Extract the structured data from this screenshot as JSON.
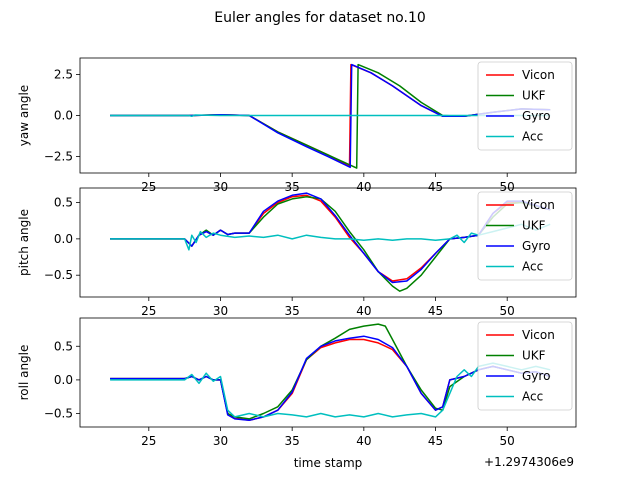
{
  "figure": {
    "title": "Euler angles for dataset no.10",
    "x_offset_label": "+1.2974306e9"
  },
  "colors": {
    "Vicon": "#ff0000",
    "UKF": "#008000",
    "Gyro": "#0000ff",
    "Acc": "#00bfbf"
  },
  "chart_data": [
    {
      "type": "line",
      "ylabel": "yaw angle",
      "xlabel": "",
      "xlim": [
        20.2,
        54.8
      ],
      "ylim": [
        -3.5,
        3.5
      ],
      "xticks": [
        25,
        30,
        35,
        40,
        45,
        50
      ],
      "yticks": [
        2.5,
        0.0,
        -2.5
      ],
      "ytick_labels": [
        "2.5",
        "0.0",
        "−2.5"
      ],
      "legend": {
        "placement": "top-right",
        "entries": [
          "Vicon",
          "UKF",
          "Gyro",
          "Acc"
        ]
      },
      "series": [
        {
          "name": "Vicon",
          "x": [
            22.3,
            28.0,
            30.0,
            32.0,
            34.0,
            36.0,
            37.5,
            39.0,
            39.1,
            40.5,
            42.0,
            44.0,
            45.5,
            47.0,
            49.0,
            51.0,
            53.0
          ],
          "y": [
            0.0,
            0.0,
            0.05,
            0.0,
            -1.0,
            -1.8,
            -2.4,
            -3.1,
            3.1,
            2.6,
            1.8,
            0.6,
            -0.05,
            -0.05,
            0.2,
            0.4,
            0.35
          ]
        },
        {
          "name": "UKF",
          "x": [
            22.3,
            28.0,
            30.0,
            32.0,
            34.0,
            36.0,
            37.5,
            39.5,
            39.6,
            41.0,
            42.5,
            44.0,
            45.5,
            47.0,
            49.0,
            51.0,
            53.0
          ],
          "y": [
            0.0,
            0.0,
            0.05,
            0.0,
            -1.0,
            -1.8,
            -2.4,
            -3.2,
            3.1,
            2.6,
            1.8,
            0.8,
            0.0,
            -0.05,
            0.2,
            0.4,
            0.35
          ]
        },
        {
          "name": "Gyro",
          "x": [
            22.3,
            28.0,
            30.0,
            32.0,
            34.0,
            36.0,
            37.5,
            39.05,
            39.15,
            40.5,
            42.0,
            44.0,
            45.5,
            47.0,
            49.0,
            51.0,
            53.0
          ],
          "y": [
            0.0,
            0.0,
            0.05,
            0.0,
            -1.05,
            -1.9,
            -2.5,
            -3.15,
            3.1,
            2.6,
            1.8,
            0.6,
            -0.05,
            -0.05,
            0.2,
            0.4,
            0.35
          ]
        },
        {
          "name": "Acc",
          "x": [
            22.3,
            27.8,
            28.0,
            28.2,
            30.0,
            32.0,
            35.0,
            38.0,
            41.0,
            44.0,
            47.0,
            50.0,
            53.0
          ],
          "y": [
            0.0,
            0.0,
            -0.05,
            0.03,
            0.0,
            0.0,
            0.0,
            0.0,
            0.0,
            0.0,
            0.0,
            0.0,
            0.0
          ]
        }
      ]
    },
    {
      "type": "line",
      "ylabel": "pitch angle",
      "xlabel": "",
      "xlim": [
        20.2,
        54.8
      ],
      "ylim": [
        -0.8,
        0.7
      ],
      "xticks": [
        25,
        30,
        35,
        40,
        45,
        50
      ],
      "yticks": [
        0.5,
        0.0,
        -0.5
      ],
      "ytick_labels": [
        "0.5",
        "0.0",
        "−0.5"
      ],
      "legend": {
        "placement": "top-right",
        "entries": [
          "Vicon",
          "UKF",
          "Gyro",
          "Acc"
        ]
      },
      "series": [
        {
          "name": "Vicon",
          "x": [
            22.3,
            27.5,
            28.0,
            28.5,
            29.0,
            29.5,
            30.0,
            30.5,
            31.0,
            32.0,
            33.0,
            34.0,
            35.0,
            36.0,
            37.0,
            38.0,
            39.0,
            40.0,
            41.0,
            42.0,
            43.0,
            44.0,
            45.0,
            46.0,
            47.0,
            48.0,
            49.0,
            50.0,
            51.0,
            52.0,
            53.0
          ],
          "y": [
            0.0,
            0.0,
            -0.1,
            0.05,
            0.1,
            0.05,
            0.12,
            0.06,
            0.08,
            0.08,
            0.35,
            0.5,
            0.58,
            0.6,
            0.52,
            0.3,
            0.02,
            -0.2,
            -0.45,
            -0.58,
            -0.55,
            -0.4,
            -0.2,
            0.0,
            0.02,
            0.05,
            0.35,
            0.5,
            0.5,
            0.45,
            0.4
          ]
        },
        {
          "name": "UKF",
          "x": [
            22.3,
            27.5,
            28.0,
            28.5,
            29.0,
            29.5,
            30.0,
            30.5,
            31.0,
            32.0,
            33.0,
            34.0,
            35.0,
            36.0,
            37.0,
            38.0,
            39.0,
            40.0,
            41.0,
            42.0,
            42.5,
            43.0,
            44.0,
            45.0,
            46.0,
            47.0,
            48.0,
            49.0,
            50.0,
            51.0,
            52.0,
            53.0
          ],
          "y": [
            0.0,
            0.0,
            -0.1,
            0.05,
            0.12,
            0.05,
            0.12,
            0.06,
            0.08,
            0.08,
            0.3,
            0.48,
            0.55,
            0.58,
            0.55,
            0.38,
            0.1,
            -0.15,
            -0.45,
            -0.65,
            -0.72,
            -0.68,
            -0.5,
            -0.25,
            0.0,
            0.02,
            0.05,
            0.3,
            0.48,
            0.5,
            0.45,
            0.4
          ]
        },
        {
          "name": "Gyro",
          "x": [
            22.3,
            27.5,
            28.0,
            28.5,
            29.0,
            29.5,
            30.0,
            30.5,
            31.0,
            32.0,
            33.0,
            34.0,
            35.0,
            36.0,
            37.0,
            38.0,
            39.0,
            40.0,
            41.0,
            42.0,
            43.0,
            44.0,
            45.0,
            46.0,
            47.0,
            48.0,
            49.0,
            50.0,
            51.0,
            52.0,
            53.0
          ],
          "y": [
            0.0,
            0.0,
            -0.1,
            0.05,
            0.1,
            0.05,
            0.12,
            0.06,
            0.08,
            0.08,
            0.38,
            0.52,
            0.6,
            0.63,
            0.55,
            0.32,
            0.05,
            -0.2,
            -0.45,
            -0.6,
            -0.58,
            -0.42,
            -0.2,
            0.0,
            0.02,
            0.05,
            0.35,
            0.52,
            0.52,
            0.46,
            0.4
          ]
        },
        {
          "name": "Acc",
          "x": [
            22.3,
            27.5,
            27.8,
            28.0,
            28.3,
            28.6,
            29.0,
            29.5,
            30.0,
            31.0,
            32.0,
            33.0,
            34.0,
            35.0,
            36.0,
            37.0,
            38.0,
            39.0,
            40.0,
            41.0,
            42.0,
            43.0,
            44.0,
            45.0,
            46.0,
            46.5,
            47.0,
            47.5,
            48.0,
            49.0,
            50.0,
            51.0,
            52.0,
            53.0
          ],
          "y": [
            0.0,
            0.0,
            -0.15,
            0.05,
            -0.05,
            0.1,
            0.02,
            0.08,
            0.05,
            0.02,
            0.04,
            0.02,
            0.05,
            0.0,
            0.05,
            0.02,
            0.0,
            0.0,
            -0.02,
            0.0,
            -0.02,
            0.0,
            0.0,
            -0.02,
            0.0,
            0.05,
            -0.05,
            0.08,
            0.05,
            0.1,
            0.15,
            0.2,
            0.12,
            0.2
          ]
        }
      ]
    },
    {
      "type": "line",
      "ylabel": "roll angle",
      "xlabel": "time stamp",
      "xlim": [
        20.2,
        54.8
      ],
      "ylim": [
        -0.7,
        0.92
      ],
      "xticks": [
        25,
        30,
        35,
        40,
        45,
        50
      ],
      "yticks": [
        0.5,
        0.0,
        -0.5
      ],
      "ytick_labels": [
        "0.5",
        "0.0",
        "−0.5"
      ],
      "legend": {
        "placement": "top-right",
        "entries": [
          "Vicon",
          "UKF",
          "Gyro",
          "Acc"
        ]
      },
      "series": [
        {
          "name": "Vicon",
          "x": [
            22.3,
            27.5,
            28.0,
            28.5,
            29.0,
            29.5,
            30.0,
            30.5,
            31.0,
            32.0,
            33.0,
            34.0,
            35.0,
            36.0,
            37.0,
            38.0,
            39.0,
            40.0,
            41.0,
            42.0,
            43.0,
            44.0,
            45.0,
            45.5,
            46.0,
            47.0,
            48.0,
            49.0,
            50.0,
            51.0,
            52.0,
            53.0
          ],
          "y": [
            0.02,
            0.02,
            0.05,
            0.0,
            0.05,
            0.0,
            0.0,
            -0.5,
            -0.57,
            -0.6,
            -0.55,
            -0.45,
            -0.2,
            0.3,
            0.48,
            0.55,
            0.6,
            0.6,
            0.55,
            0.45,
            0.2,
            -0.2,
            -0.45,
            -0.4,
            0.0,
            0.05,
            0.15,
            0.2,
            0.15,
            0.1,
            0.12,
            0.05
          ]
        },
        {
          "name": "UKF",
          "x": [
            22.3,
            27.5,
            28.0,
            28.5,
            29.0,
            29.5,
            30.0,
            30.5,
            31.0,
            32.0,
            33.0,
            34.0,
            35.0,
            36.0,
            37.0,
            38.0,
            39.0,
            40.0,
            41.0,
            41.5,
            42.0,
            43.0,
            44.0,
            45.0,
            45.5,
            46.0,
            47.0,
            48.0,
            49.0,
            50.0,
            51.0,
            52.0,
            53.0
          ],
          "y": [
            0.02,
            0.02,
            0.05,
            0.0,
            0.05,
            0.0,
            0.0,
            -0.5,
            -0.55,
            -0.58,
            -0.5,
            -0.4,
            -0.15,
            0.3,
            0.5,
            0.62,
            0.75,
            0.8,
            0.83,
            0.8,
            0.6,
            0.2,
            -0.15,
            -0.42,
            -0.45,
            -0.1,
            0.05,
            0.15,
            0.2,
            0.15,
            0.1,
            0.12,
            0.05
          ]
        },
        {
          "name": "Gyro",
          "x": [
            22.3,
            27.5,
            28.0,
            28.5,
            29.0,
            29.5,
            30.0,
            30.5,
            31.0,
            32.0,
            33.0,
            34.0,
            35.0,
            36.0,
            37.0,
            38.0,
            39.0,
            40.0,
            41.0,
            42.0,
            43.0,
            44.0,
            45.0,
            45.5,
            46.0,
            47.0,
            48.0,
            49.0,
            50.0,
            51.0,
            52.0,
            53.0
          ],
          "y": [
            0.02,
            0.02,
            0.05,
            0.0,
            0.05,
            0.0,
            0.0,
            -0.52,
            -0.58,
            -0.6,
            -0.55,
            -0.45,
            -0.18,
            0.32,
            0.5,
            0.58,
            0.62,
            0.65,
            0.6,
            0.48,
            0.2,
            -0.2,
            -0.45,
            -0.4,
            0.0,
            0.05,
            0.15,
            0.2,
            0.15,
            0.1,
            0.12,
            0.05
          ]
        },
        {
          "name": "Acc",
          "x": [
            22.3,
            27.5,
            28.0,
            28.5,
            29.0,
            29.5,
            30.0,
            30.5,
            31.0,
            32.0,
            33.0,
            34.0,
            35.0,
            36.0,
            37.0,
            38.0,
            39.0,
            40.0,
            41.0,
            42.0,
            43.0,
            44.0,
            45.0,
            45.5,
            46.0,
            46.5,
            47.0,
            47.5,
            48.0,
            49.0,
            50.0,
            51.0,
            52.0,
            53.0
          ],
          "y": [
            0.0,
            0.0,
            0.08,
            -0.05,
            0.1,
            -0.02,
            0.05,
            -0.45,
            -0.55,
            -0.5,
            -0.55,
            -0.5,
            -0.52,
            -0.55,
            -0.5,
            -0.55,
            -0.52,
            -0.55,
            -0.5,
            -0.55,
            -0.52,
            -0.5,
            -0.55,
            -0.45,
            -0.2,
            0.05,
            0.15,
            0.05,
            0.2,
            0.25,
            0.2,
            0.15,
            0.2,
            0.15
          ]
        }
      ]
    }
  ]
}
